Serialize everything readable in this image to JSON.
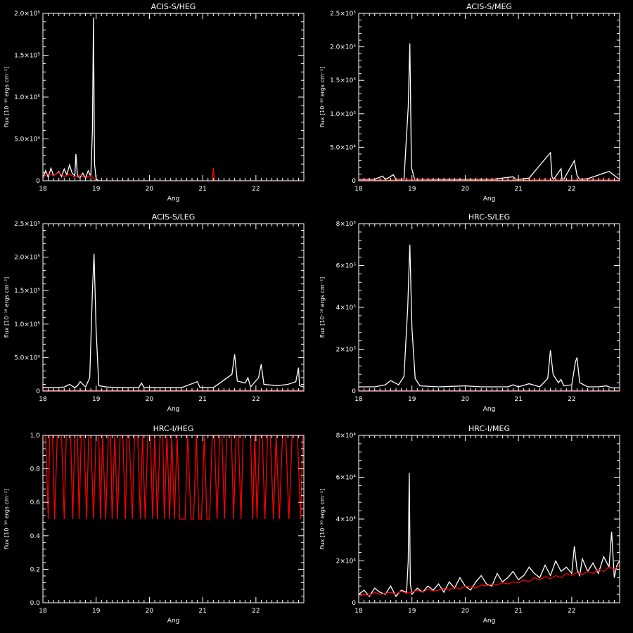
{
  "figure": {
    "background": "#000000",
    "foreground": "#ffffff",
    "accent": "#ff0000"
  },
  "chart_data": [
    {
      "type": "line",
      "title": "ACIS-S/HEG",
      "xlabel": "Ang",
      "ylabel": "flux [10⁻¹⁸ ergs cm⁻²]",
      "xlim": [
        18,
        22.9
      ],
      "ylim": [
        0,
        200000
      ],
      "yticks": [
        0,
        50000,
        100000,
        150000,
        200000
      ],
      "ytick_labels": [
        "0",
        "5.0×10⁴",
        "1.0×10⁵",
        "1.5×10⁵",
        "2.0×10⁵"
      ],
      "xticks": [
        18,
        19,
        20,
        21,
        22
      ],
      "xtick_labels": [
        "18",
        "19",
        "20",
        "21",
        "22"
      ],
      "series": [
        {
          "color": "#ffffff",
          "x": [
            18.0,
            18.05,
            18.1,
            18.15,
            18.2,
            18.25,
            18.3,
            18.35,
            18.4,
            18.45,
            18.5,
            18.55,
            18.6,
            18.62,
            18.65,
            18.7,
            18.75,
            18.8,
            18.85,
            18.9,
            18.93,
            18.95,
            18.97,
            19.0,
            19.05,
            19.1
          ],
          "y": [
            3000,
            12000,
            4000,
            15000,
            6000,
            8000,
            11000,
            5000,
            14000,
            7000,
            19000,
            9000,
            6000,
            32000,
            5000,
            4000,
            9000,
            3000,
            12000,
            5000,
            60000,
            195000,
            20000,
            2000,
            0,
            0
          ]
        },
        {
          "color": "#ff0000",
          "x": [
            18.0,
            18.1,
            18.2,
            18.3,
            18.4,
            18.5,
            18.6,
            18.7,
            18.8,
            18.9,
            19.0,
            19.5,
            20.0,
            20.5,
            21.0,
            21.15,
            21.18,
            21.2,
            21.22,
            21.25,
            21.5,
            22.0,
            22.5,
            22.9
          ],
          "y": [
            4000,
            9000,
            6000,
            10000,
            5000,
            8000,
            4000,
            7000,
            3000,
            6000,
            0,
            0,
            0,
            0,
            0,
            0,
            0,
            15000,
            0,
            0,
            0,
            0,
            0,
            0
          ]
        }
      ]
    },
    {
      "type": "line",
      "title": "ACIS-S/MEG",
      "xlabel": "Ang",
      "ylabel": "flux [10⁻¹⁸ ergs cm⁻²]",
      "xlim": [
        18,
        22.9
      ],
      "ylim": [
        0,
        250000
      ],
      "yticks": [
        0,
        50000,
        100000,
        150000,
        200000,
        250000
      ],
      "ytick_labels": [
        "0",
        "5.0×10⁴",
        "1.0×10⁵",
        "1.5×10⁵",
        "2.0×10⁵",
        "2.5×10⁵"
      ],
      "xticks": [
        18,
        19,
        20,
        21,
        22
      ],
      "xtick_labels": [
        "18",
        "19",
        "20",
        "21",
        "22"
      ],
      "series": [
        {
          "color": "#ffffff",
          "x": [
            18.0,
            18.3,
            18.45,
            18.5,
            18.55,
            18.65,
            18.7,
            18.85,
            18.93,
            18.96,
            18.99,
            19.05,
            19.5,
            20.0,
            20.5,
            20.9,
            20.95,
            21.0,
            21.2,
            21.6,
            21.63,
            21.66,
            21.8,
            21.82,
            21.85,
            22.05,
            22.1,
            22.15,
            22.3,
            22.7,
            22.9
          ],
          "y": [
            2000,
            2000,
            7000,
            2000,
            4000,
            9000,
            2000,
            2000,
            110000,
            205000,
            20000,
            2000,
            2000,
            2000,
            2000,
            6000,
            2000,
            2000,
            4000,
            42000,
            6000,
            2000,
            18000,
            2000,
            2000,
            30000,
            8000,
            2000,
            3000,
            14000,
            2000
          ]
        },
        {
          "color": "#ff0000",
          "x": [
            18.0,
            18.5,
            19.0,
            19.5,
            20.0,
            20.5,
            21.0,
            21.5,
            22.0,
            22.5,
            22.9
          ],
          "y": [
            1000,
            1000,
            1500,
            1000,
            1000,
            1200,
            1000,
            1500,
            1000,
            1500,
            1000
          ]
        }
      ]
    },
    {
      "type": "line",
      "title": "ACIS-S/LEG",
      "xlabel": "Ang",
      "ylabel": "flux [10⁻¹⁸ ergs cm⁻²]",
      "xlim": [
        18,
        22.9
      ],
      "ylim": [
        0,
        250000
      ],
      "yticks": [
        0,
        50000,
        100000,
        150000,
        200000,
        250000
      ],
      "ytick_labels": [
        "0",
        "5.0×10⁴",
        "1.0×10⁵",
        "1.5×10⁵",
        "2.0×10⁵",
        "2.5×10⁵"
      ],
      "xticks": [
        18,
        19,
        20,
        21,
        22
      ],
      "xtick_labels": [
        "18",
        "19",
        "20",
        "21",
        "22"
      ],
      "series": [
        {
          "color": "#ffffff",
          "x": [
            18.0,
            18.2,
            18.4,
            18.5,
            18.6,
            18.65,
            18.7,
            18.8,
            18.88,
            18.93,
            18.96,
            19.0,
            19.05,
            19.2,
            19.5,
            19.8,
            19.85,
            19.9,
            20.2,
            20.6,
            20.9,
            20.95,
            21.2,
            21.55,
            21.6,
            21.65,
            21.8,
            21.85,
            21.9,
            22.05,
            22.1,
            22.15,
            22.4,
            22.6,
            22.75,
            22.8,
            22.82,
            22.9
          ],
          "y": [
            5000,
            5000,
            6000,
            10000,
            5000,
            8000,
            14000,
            6000,
            20000,
            150000,
            205000,
            90000,
            8000,
            6000,
            5000,
            5000,
            12000,
            5000,
            5000,
            5000,
            14000,
            5000,
            5000,
            25000,
            55000,
            15000,
            12000,
            20000,
            6000,
            20000,
            40000,
            10000,
            8000,
            10000,
            14000,
            35000,
            8000,
            6000
          ]
        },
        {
          "color": "#ff0000",
          "x": [
            18.0,
            18.5,
            19.0,
            19.5,
            20.0,
            20.5,
            21.0,
            21.5,
            22.0,
            22.5,
            22.9
          ],
          "y": [
            800,
            800,
            800,
            800,
            800,
            800,
            800,
            800,
            800,
            800,
            800
          ]
        }
      ]
    },
    {
      "type": "line",
      "title": "HRC-S/LEG",
      "xlabel": "Ang",
      "ylabel": "flux [10⁻¹⁸ ergs cm⁻²]",
      "xlim": [
        18,
        22.9
      ],
      "ylim": [
        0,
        800000
      ],
      "yticks": [
        0,
        200000,
        400000,
        600000,
        800000
      ],
      "ytick_labels": [
        "0",
        "2×10⁵",
        "4×10⁵",
        "6×10⁵",
        "8×10⁵"
      ],
      "xticks": [
        18,
        19,
        20,
        21,
        22
      ],
      "xtick_labels": [
        "18",
        "19",
        "20",
        "21",
        "22"
      ],
      "series": [
        {
          "color": "#ffffff",
          "x": [
            18.0,
            18.3,
            18.5,
            18.6,
            18.75,
            18.85,
            18.92,
            18.96,
            19.0,
            19.06,
            19.15,
            19.5,
            20.0,
            20.3,
            20.5,
            20.8,
            20.9,
            21.0,
            21.2,
            21.4,
            21.55,
            21.6,
            21.65,
            21.75,
            21.8,
            21.85,
            22.0,
            22.07,
            22.1,
            22.15,
            22.3,
            22.5,
            22.65,
            22.75,
            22.9
          ],
          "y": [
            20000,
            20000,
            30000,
            50000,
            30000,
            70000,
            400000,
            700000,
            300000,
            60000,
            25000,
            20000,
            25000,
            20000,
            20000,
            20000,
            30000,
            20000,
            35000,
            20000,
            60000,
            195000,
            80000,
            40000,
            55000,
            25000,
            30000,
            140000,
            160000,
            40000,
            20000,
            20000,
            25000,
            15000,
            15000
          ]
        },
        {
          "color": "#ff0000",
          "x": [
            18.0,
            18.5,
            19.0,
            19.5,
            20.0,
            20.5,
            21.0,
            21.5,
            22.0,
            22.5,
            22.9
          ],
          "y": [
            1000,
            1000,
            1000,
            1000,
            1000,
            1000,
            1000,
            1000,
            1000,
            1000,
            1000
          ]
        }
      ]
    },
    {
      "type": "line",
      "title": "HRC-I/HEG",
      "xlabel": "Ang",
      "ylabel": "flux [10⁻¹⁸ ergs cm⁻²]",
      "xlim": [
        18,
        22.9
      ],
      "ylim": [
        0,
        1.0
      ],
      "yticks": [
        0,
        0.2,
        0.4,
        0.6,
        0.8,
        1.0
      ],
      "ytick_labels": [
        "0.0",
        "0.2",
        "0.4",
        "0.6",
        "0.8",
        "1.0"
      ],
      "xticks": [
        18,
        19,
        20,
        21,
        22
      ],
      "xtick_labels": [
        "18",
        "19",
        "20",
        "21",
        "22"
      ],
      "series": [
        {
          "color": "#ff0000",
          "x": [
            18.05,
            18.1,
            18.13,
            18.18,
            18.22,
            18.27,
            18.31,
            18.35,
            18.4,
            18.44,
            18.47,
            18.52,
            18.56,
            18.6,
            18.65,
            18.68,
            18.72,
            18.77,
            18.82,
            18.86,
            18.9,
            18.95,
            19.0,
            19.05,
            19.08,
            19.12,
            19.18,
            19.23,
            19.27,
            19.3,
            19.35,
            19.4,
            19.45,
            19.5,
            19.55,
            19.58,
            19.62,
            19.68,
            19.72,
            19.78,
            19.83,
            19.87,
            19.92,
            19.97,
            20.02,
            20.06,
            20.1,
            20.15,
            20.2,
            20.25,
            20.28,
            20.33,
            20.38,
            20.42,
            20.47,
            20.52,
            20.57,
            20.62,
            20.67,
            20.72,
            20.78,
            20.83,
            20.88,
            20.93,
            20.98,
            21.03,
            21.08,
            21.13,
            21.18,
            21.22,
            21.27,
            21.32,
            21.36,
            21.41,
            21.45,
            21.5,
            21.54,
            21.58,
            21.63,
            21.67,
            21.72,
            21.76,
            21.8,
            21.85,
            21.9,
            21.94,
            21.98,
            22.02,
            22.07,
            22.12,
            22.17,
            22.22,
            22.27,
            22.33,
            22.38,
            22.44,
            22.5,
            22.56,
            22.62,
            22.68,
            22.72,
            22.75,
            22.78,
            22.84,
            22.88
          ],
          "y": [
            1,
            0.5,
            1,
            1,
            0.5,
            1,
            1,
            1,
            0.5,
            1,
            1,
            1,
            0.5,
            1,
            1,
            0.5,
            1,
            1,
            0.5,
            1,
            1,
            0.5,
            1,
            1,
            0.5,
            1,
            0.5,
            1,
            1,
            0.5,
            1,
            0.5,
            1,
            1,
            0.5,
            1,
            1,
            0.5,
            1,
            1,
            0.5,
            1,
            0.5,
            1,
            1,
            0.5,
            1,
            0.5,
            1,
            1,
            0.5,
            1,
            0.5,
            1,
            0.5,
            1,
            0.5,
            0.5,
            0.5,
            1,
            0.5,
            0.5,
            1,
            0.5,
            0.5,
            1,
            0.5,
            0.5,
            1,
            1,
            0.5,
            1,
            1,
            0.5,
            1,
            1,
            1,
            0.5,
            1,
            1,
            0.5,
            1,
            1,
            1,
            1,
            0.5,
            1,
            0.5,
            1,
            1,
            0.5,
            1,
            1,
            0.5,
            1,
            0.5,
            1,
            1,
            0.5,
            1,
            1,
            1,
            1,
            0.5,
            1
          ]
        }
      ]
    },
    {
      "type": "line",
      "title": "HRC-I/MEG",
      "xlabel": "Ang",
      "ylabel": "flux [10⁻¹⁸ ergs cm⁻²]",
      "xlim": [
        18,
        22.9
      ],
      "ylim": [
        0,
        80000
      ],
      "yticks": [
        0,
        20000,
        40000,
        60000,
        80000
      ],
      "ytick_labels": [
        "0",
        "2×10⁴",
        "4×10⁴",
        "6×10⁴",
        "8×10⁴"
      ],
      "xticks": [
        18,
        19,
        20,
        21,
        22
      ],
      "xtick_labels": [
        "18",
        "19",
        "20",
        "21",
        "22"
      ],
      "series": [
        {
          "color": "#ffffff",
          "x": [
            18.0,
            18.1,
            18.2,
            18.3,
            18.4,
            18.5,
            18.6,
            18.7,
            18.8,
            18.9,
            18.93,
            18.95,
            18.97,
            19.0,
            19.1,
            19.2,
            19.3,
            19.4,
            19.5,
            19.6,
            19.7,
            19.8,
            19.9,
            20.0,
            20.1,
            20.2,
            20.3,
            20.4,
            20.5,
            20.6,
            20.7,
            20.8,
            20.9,
            21.0,
            21.1,
            21.2,
            21.3,
            21.4,
            21.5,
            21.6,
            21.7,
            21.8,
            21.9,
            22.0,
            22.05,
            22.1,
            22.15,
            22.2,
            22.3,
            22.4,
            22.5,
            22.6,
            22.7,
            22.75,
            22.8,
            22.85,
            22.9
          ],
          "y": [
            4000,
            6000,
            3000,
            7000,
            5000,
            4000,
            8000,
            3000,
            6000,
            5000,
            20000,
            62000,
            9000,
            4000,
            7000,
            5000,
            8000,
            6000,
            9000,
            5000,
            10000,
            7000,
            12000,
            8000,
            6000,
            10000,
            13000,
            9000,
            8000,
            14000,
            10000,
            12000,
            15000,
            11000,
            13000,
            17000,
            14000,
            12000,
            18000,
            13000,
            20000,
            15000,
            17000,
            14000,
            27000,
            16000,
            13000,
            21000,
            15000,
            19000,
            14000,
            22000,
            17000,
            34000,
            12000,
            18000,
            20000
          ]
        },
        {
          "color": "#ff0000",
          "x": [
            18.0,
            18.1,
            18.2,
            18.3,
            18.4,
            18.5,
            18.6,
            18.7,
            18.8,
            18.9,
            19.0,
            19.1,
            19.2,
            19.3,
            19.4,
            19.5,
            19.6,
            19.7,
            19.8,
            19.9,
            20.0,
            20.1,
            20.2,
            20.3,
            20.4,
            20.5,
            20.6,
            20.7,
            20.8,
            20.9,
            21.0,
            21.1,
            21.2,
            21.3,
            21.4,
            21.5,
            21.6,
            21.7,
            21.8,
            21.9,
            22.0,
            22.1,
            22.2,
            22.3,
            22.4,
            22.5,
            22.6,
            22.7,
            22.8,
            22.9
          ],
          "y": [
            3000,
            4000,
            3500,
            5000,
            4000,
            4500,
            5000,
            4000,
            5500,
            4500,
            5000,
            6000,
            5000,
            6500,
            5500,
            6000,
            7000,
            6000,
            7500,
            6500,
            8000,
            7500,
            7000,
            8500,
            8000,
            9000,
            8500,
            9500,
            9000,
            10000,
            9500,
            11000,
            10000,
            12000,
            11000,
            12500,
            11500,
            13000,
            12000,
            14000,
            13000,
            14500,
            13500,
            15000,
            14000,
            16000,
            15000,
            17000,
            16000,
            18000
          ]
        }
      ]
    }
  ]
}
